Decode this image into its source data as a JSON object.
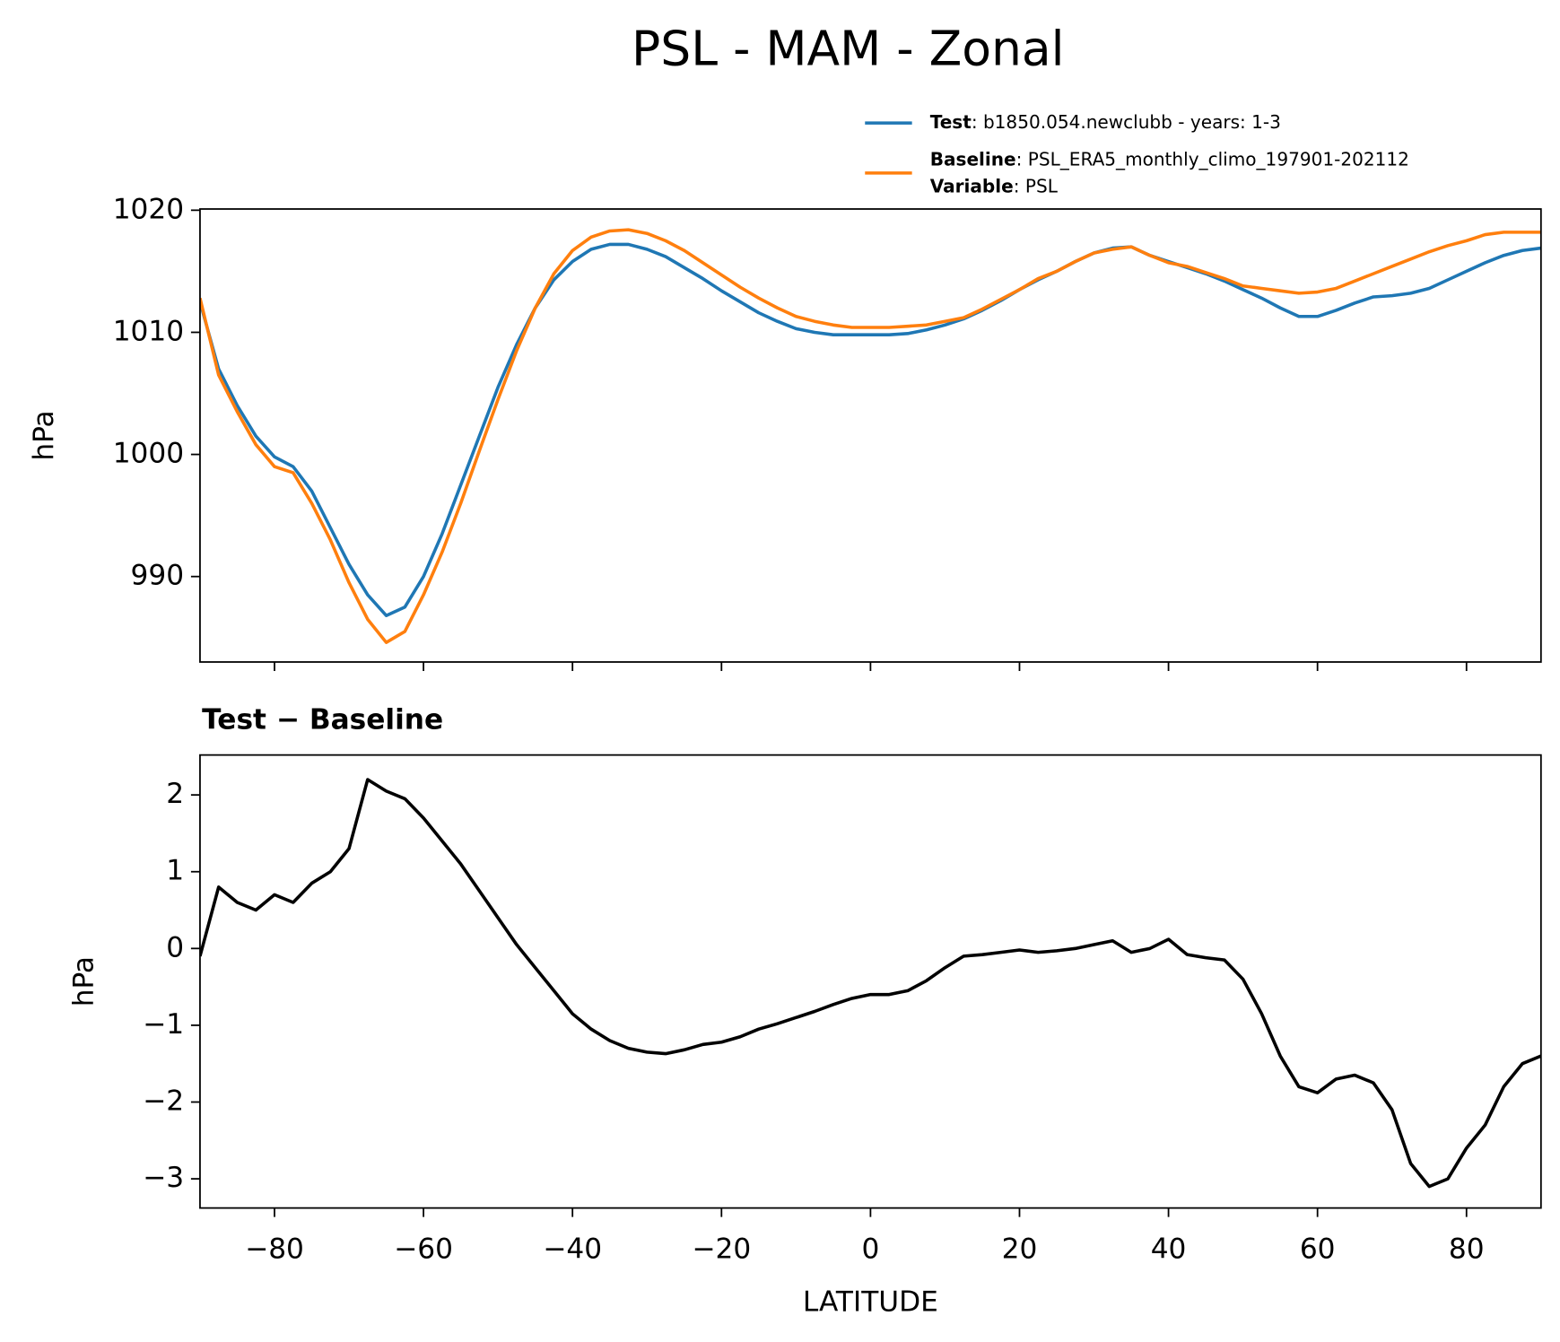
{
  "title": "PSL - MAM - Zonal",
  "chart_data": [
    {
      "type": "line",
      "ylabel": "hPa",
      "x": [
        -90,
        -87.5,
        -85,
        -82.5,
        -80,
        -77.5,
        -75,
        -72.5,
        -70,
        -67.5,
        -65,
        -62.5,
        -60,
        -57.5,
        -55,
        -52.5,
        -50,
        -47.5,
        -45,
        -42.5,
        -40,
        -37.5,
        -35,
        -32.5,
        -30,
        -27.5,
        -25,
        -22.5,
        -20,
        -17.5,
        -15,
        -12.5,
        -10,
        -7.5,
        -5,
        -2.5,
        0,
        2.5,
        5,
        7.5,
        10,
        12.5,
        15,
        17.5,
        20,
        22.5,
        25,
        27.5,
        30,
        32.5,
        35,
        37.5,
        40,
        42.5,
        45,
        47.5,
        50,
        52.5,
        55,
        57.5,
        60,
        62.5,
        65,
        67.5,
        70,
        72.5,
        75,
        77.5,
        80,
        82.5,
        85,
        87.5,
        90
      ],
      "series": [
        {
          "name": "Test",
          "description": ": b1850.054.newclubb - years: 1-3",
          "color": "#1f77b4",
          "values": [
            1012.5,
            1007,
            1004,
            1001.5,
            999.8,
            999,
            997,
            994,
            991,
            988.5,
            986.8,
            987.5,
            990,
            993.5,
            997.5,
            1001.5,
            1005.5,
            1009,
            1012,
            1014.3,
            1015.8,
            1016.8,
            1017.2,
            1017.2,
            1016.8,
            1016.2,
            1015.3,
            1014.4,
            1013.4,
            1012.5,
            1011.6,
            1010.9,
            1010.3,
            1010,
            1009.8,
            1009.8,
            1009.8,
            1009.8,
            1009.9,
            1010.2,
            1010.6,
            1011.1,
            1011.8,
            1012.6,
            1013.5,
            1014.3,
            1015,
            1015.8,
            1016.5,
            1016.9,
            1017,
            1016.3,
            1015.8,
            1015.3,
            1014.8,
            1014.2,
            1013.5,
            1012.8,
            1012,
            1011.3,
            1011.3,
            1011.8,
            1012.4,
            1012.9,
            1013,
            1013.2,
            1013.6,
            1014.3,
            1015,
            1015.7,
            1016.3,
            1016.7,
            1016.9
          ]
        },
        {
          "name": "Baseline",
          "description": ": PSL_ERA5_monthly_climo_197901-202112",
          "color": "#ff7f0e",
          "values": [
            1012.8,
            1006.5,
            1003.5,
            1000.8,
            999,
            998.5,
            996,
            993,
            989.5,
            986.5,
            984.6,
            985.5,
            988.5,
            992,
            996,
            1000.3,
            1004.5,
            1008.5,
            1012,
            1014.8,
            1016.7,
            1017.8,
            1018.3,
            1018.4,
            1018.1,
            1017.5,
            1016.7,
            1015.7,
            1014.7,
            1013.7,
            1012.8,
            1012,
            1011.3,
            1010.9,
            1010.6,
            1010.4,
            1010.4,
            1010.4,
            1010.5,
            1010.6,
            1010.9,
            1011.2,
            1011.9,
            1012.7,
            1013.5,
            1014.4,
            1015,
            1015.8,
            1016.5,
            1016.8,
            1017,
            1016.3,
            1015.7,
            1015.4,
            1014.9,
            1014.4,
            1013.8,
            1013.6,
            1013.4,
            1013.2,
            1013.3,
            1013.6,
            1014.2,
            1014.8,
            1015.4,
            1016,
            1016.6,
            1017.1,
            1017.5,
            1018,
            1018.2,
            1018.2,
            1018.2
          ]
        }
      ],
      "legend_extra": {
        "key": "Variable",
        "description": ": PSL"
      },
      "xlim": [
        -90,
        90
      ],
      "xticks": [
        -80,
        -60,
        -40,
        -20,
        0,
        20,
        40,
        60,
        80
      ],
      "ylim": [
        983,
        1020.1
      ],
      "yticks": [
        990,
        1000,
        1010,
        1020
      ]
    },
    {
      "type": "line",
      "title": "Test − Baseline",
      "xlabel": "LATITUDE",
      "ylabel": "hPa",
      "color": "#000000",
      "x": [
        -90,
        -87.5,
        -85,
        -82.5,
        -80,
        -77.5,
        -75,
        -72.5,
        -70,
        -67.5,
        -65,
        -62.5,
        -60,
        -57.5,
        -55,
        -52.5,
        -50,
        -47.5,
        -45,
        -42.5,
        -40,
        -37.5,
        -35,
        -32.5,
        -30,
        -27.5,
        -25,
        -22.5,
        -20,
        -17.5,
        -15,
        -12.5,
        -10,
        -7.5,
        -5,
        -2.5,
        0,
        2.5,
        5,
        7.5,
        10,
        12.5,
        15,
        17.5,
        20,
        22.5,
        25,
        27.5,
        30,
        32.5,
        35,
        37.5,
        40,
        42.5,
        45,
        47.5,
        50,
        52.5,
        55,
        57.5,
        60,
        62.5,
        65,
        67.5,
        70,
        72.5,
        75,
        77.5,
        80,
        82.5,
        85,
        87.5,
        90
      ],
      "values": [
        -0.1,
        0.8,
        0.6,
        0.5,
        0.7,
        0.6,
        0.85,
        1.0,
        1.3,
        2.2,
        2.05,
        1.95,
        1.7,
        1.4,
        1.1,
        0.75,
        0.4,
        0.05,
        -0.25,
        -0.55,
        -0.85,
        -1.05,
        -1.2,
        -1.3,
        -1.35,
        -1.37,
        -1.32,
        -1.25,
        -1.22,
        -1.15,
        -1.05,
        -0.98,
        -0.9,
        -0.82,
        -0.73,
        -0.65,
        -0.6,
        -0.6,
        -0.55,
        -0.42,
        -0.25,
        -0.1,
        -0.08,
        -0.05,
        -0.02,
        -0.05,
        -0.03,
        0.0,
        0.05,
        0.1,
        -0.05,
        0.0,
        0.12,
        -0.08,
        -0.12,
        -0.15,
        -0.4,
        -0.85,
        -1.4,
        -1.8,
        -1.88,
        -1.7,
        -1.65,
        -1.75,
        -2.1,
        -2.8,
        -3.1,
        -3.0,
        -2.6,
        -2.3,
        -1.8,
        -1.5,
        -1.4
      ],
      "xlim": [
        -90,
        90
      ],
      "xticks": [
        {
          "value": -80,
          "label": "−80"
        },
        {
          "value": -60,
          "label": "−60"
        },
        {
          "value": -40,
          "label": "−40"
        },
        {
          "value": -20,
          "label": "−20"
        },
        0,
        20,
        40,
        60,
        80
      ],
      "ylim": [
        -3.38,
        2.52
      ],
      "yticks": [
        {
          "value": -3,
          "label": "−3"
        },
        {
          "value": -2,
          "label": "−2"
        },
        {
          "value": -1,
          "label": "−1"
        },
        0,
        1,
        2
      ]
    }
  ]
}
